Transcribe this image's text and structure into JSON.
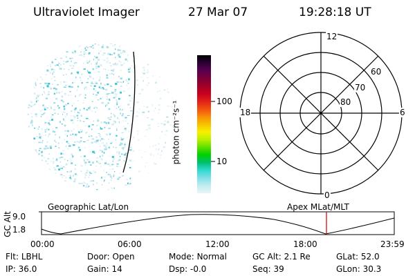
{
  "header": {
    "title": "Ultraviolet Imager",
    "date": "27 Mar 07",
    "time": "19:28:18 UT"
  },
  "colorbar": {
    "unit_label": "photon cm⁻²s⁻¹",
    "ticks": [
      "100",
      "10"
    ],
    "colors": [
      "#000000",
      "#2a0033",
      "#5a0050",
      "#7a0038",
      "#a00028",
      "#c80020",
      "#e02018",
      "#f05010",
      "#f88c08",
      "#f8c000",
      "#f8f000",
      "#b8f000",
      "#60e000",
      "#00d000",
      "#00c070",
      "#30d8d0",
      "#80e0e8",
      "#c0ecf0",
      "#e8f6f8"
    ]
  },
  "polar": {
    "mlt_labels": {
      "top": "12",
      "left": "18",
      "right": "6",
      "bottom": "0"
    },
    "lat_labels": [
      "60",
      "70",
      "80"
    ]
  },
  "altitude_panel": {
    "ylabel": "GC Alt",
    "yticks": [
      "9.0",
      "1.8"
    ],
    "left_title": "Geographic Lat/Lon",
    "right_title": "Apex MLat/MLT",
    "xticks": [
      "00:00",
      "06:00",
      "12:00",
      "18:00",
      "23:59"
    ],
    "marker_color": "#cc0000"
  },
  "info": {
    "row1": [
      {
        "label": "Flt:",
        "value": "LBHL"
      },
      {
        "label": "Door:",
        "value": "Open"
      },
      {
        "label": "Mode:",
        "value": "Normal"
      },
      {
        "label": "GC Alt:",
        "value": "2.1 Re"
      },
      {
        "label": "GLat:",
        "value": "52.0"
      }
    ],
    "row2": [
      {
        "label": "IP:",
        "value": "36.0"
      },
      {
        "label": "Gain:",
        "value": "14"
      },
      {
        "label": "Dsp:",
        "value": "-0.0"
      },
      {
        "label": "Seq:",
        "value": "39"
      },
      {
        "label": "GLon:",
        "value": "30.3"
      }
    ]
  }
}
